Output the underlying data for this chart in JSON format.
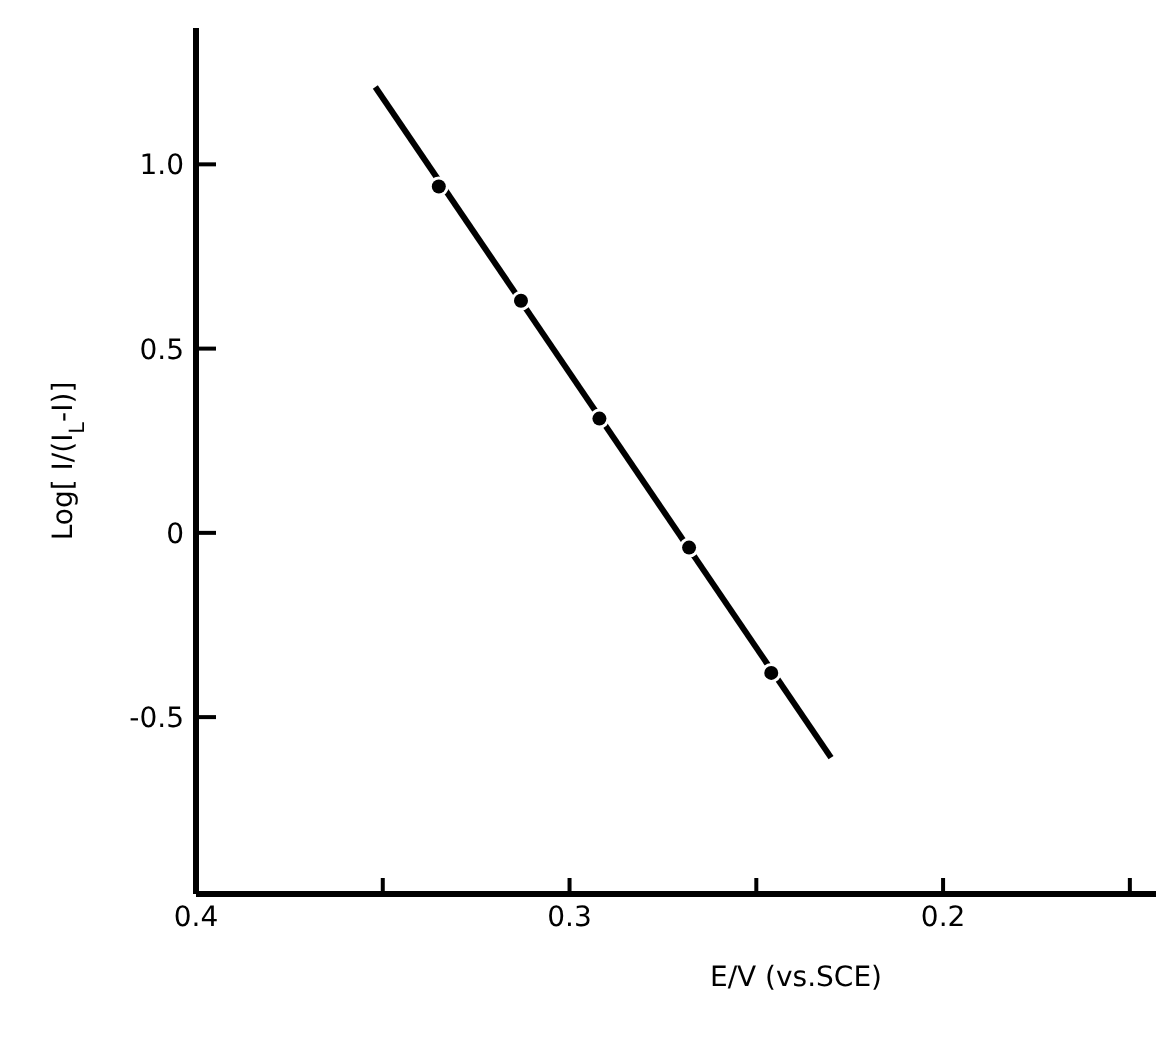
{
  "chart_data": {
    "type": "scatter",
    "xlabel": "E/V (vs.SCE)",
    "ylabel": "Log[ I/(I$_{L}$-I)]",
    "xlim": [
      0.4,
      0.143
    ],
    "ylim": [
      -0.98,
      1.37
    ],
    "xticks": [
      0.4,
      {
        "value": 0.35,
        "label": null
      },
      0.3,
      {
        "value": 0.25,
        "label": null
      },
      0.2,
      {
        "value": 0.15,
        "label": null
      }
    ],
    "yticks": [
      {
        "value": 1,
        "label": "1.0"
      },
      0.5,
      0,
      -0.5
    ],
    "grid": false,
    "marker": "circle",
    "series": [
      {
        "type": "line",
        "marker": "none",
        "color": "#000000",
        "x": [
          0.352,
          0.23
        ],
        "values": [
          1.21,
          -0.61
        ]
      },
      {
        "color": "#000000",
        "x": [
          0.335,
          0.313,
          0.292,
          0.268,
          0.246
        ],
        "values": [
          0.94,
          0.63,
          0.31,
          -0.04,
          -0.38
        ]
      }
    ]
  }
}
